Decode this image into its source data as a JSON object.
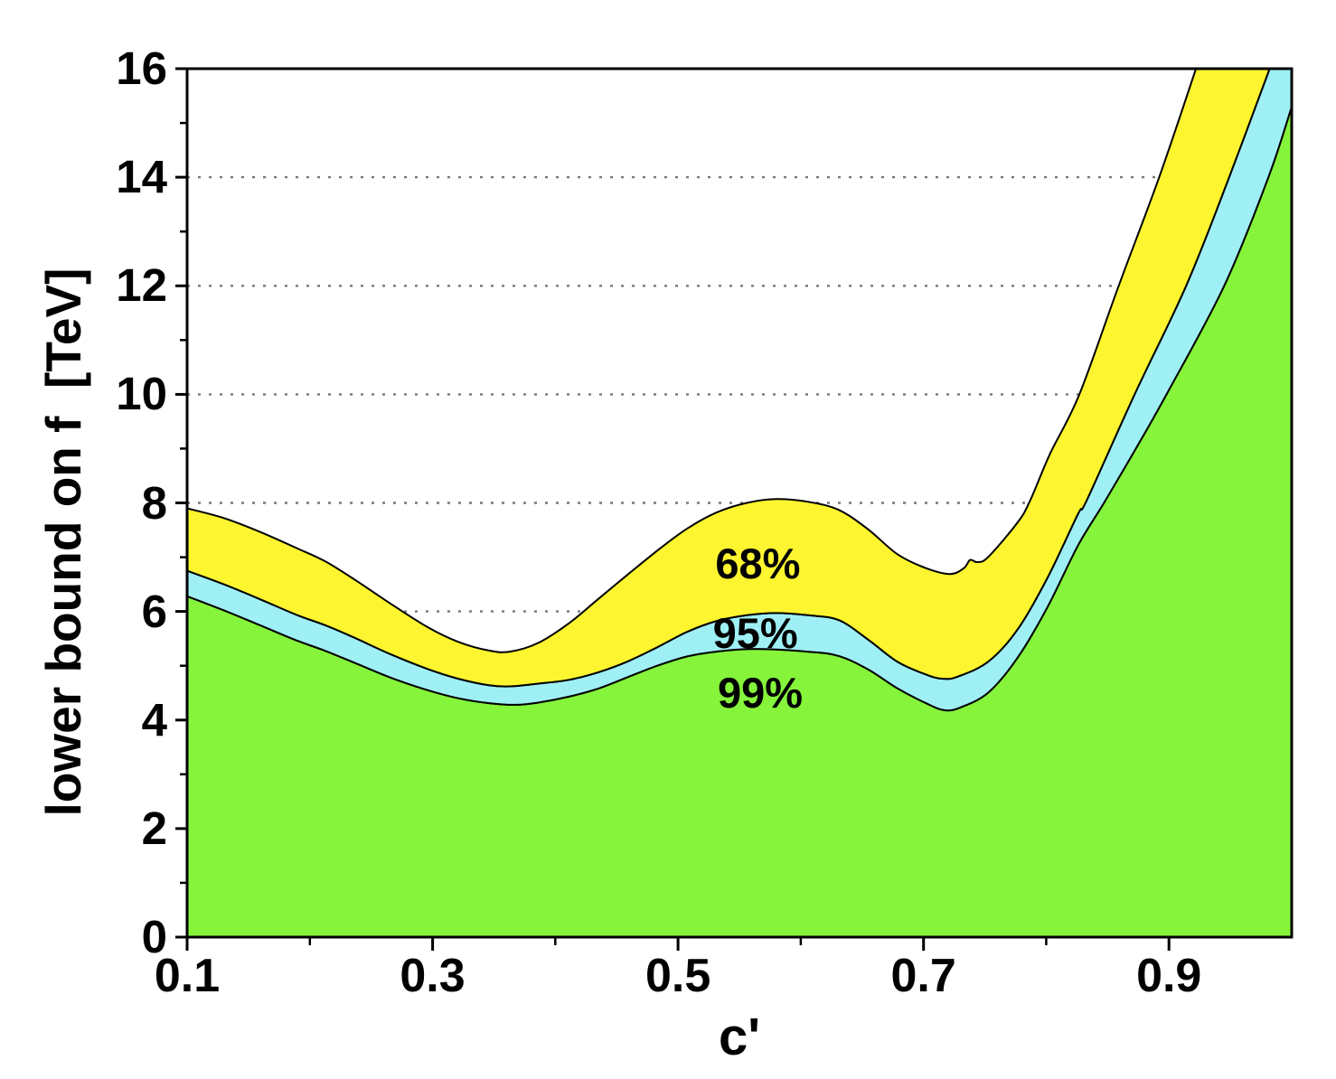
{
  "chart_data": {
    "type": "area",
    "title": "",
    "xlabel": "c'",
    "ylabel": "lower bound on f  [TeV]",
    "xlim": [
      0.1,
      1.0
    ],
    "ylim": [
      0,
      16
    ],
    "grid": "dotted horizontal gridlines at major y ticks",
    "legend_position": "labels inside bands",
    "x_major_ticks": [
      0.1,
      0.3,
      0.5,
      0.7,
      0.9
    ],
    "x_major_tick_labels": [
      "0.1",
      "0.3",
      "0.5",
      "0.7",
      "0.9"
    ],
    "x_minor_ticks": [
      0.2,
      0.4,
      0.6,
      0.8
    ],
    "y_major_ticks": [
      0,
      2,
      4,
      6,
      8,
      10,
      12,
      14,
      16
    ],
    "y_major_tick_labels": [
      "0",
      "2",
      "4",
      "6",
      "8",
      "10",
      "12",
      "14",
      "16"
    ],
    "y_minor_ticks": [
      1,
      3,
      5,
      7,
      9,
      11,
      13,
      15
    ],
    "gridline_y_values": [
      2,
      4,
      6,
      8,
      10,
      12,
      14
    ],
    "colors": {
      "band_68": "#FCF52F",
      "band_95": "#9FF0F5",
      "band_99": "#85F43B",
      "outline": "#000000",
      "grid": "#777777",
      "frame": "#000000",
      "background": "#FFFFFF"
    },
    "series": [
      {
        "name": "68% CL upper boundary",
        "band_fill": "#FCF52F",
        "points": [
          [
            0.1,
            7.9
          ],
          [
            0.13,
            7.72
          ],
          [
            0.16,
            7.46
          ],
          [
            0.19,
            7.16
          ],
          [
            0.212,
            6.93
          ],
          [
            0.237,
            6.58
          ],
          [
            0.266,
            6.14
          ],
          [
            0.296,
            5.71
          ],
          [
            0.321,
            5.44
          ],
          [
            0.346,
            5.28
          ],
          [
            0.363,
            5.26
          ],
          [
            0.386,
            5.42
          ],
          [
            0.411,
            5.78
          ],
          [
            0.435,
            6.23
          ],
          [
            0.459,
            6.68
          ],
          [
            0.483,
            7.12
          ],
          [
            0.507,
            7.52
          ],
          [
            0.531,
            7.82
          ],
          [
            0.556,
            8.0
          ],
          [
            0.58,
            8.07
          ],
          [
            0.606,
            8.02
          ],
          [
            0.631,
            7.87
          ],
          [
            0.655,
            7.51
          ],
          [
            0.679,
            7.05
          ],
          [
            0.703,
            6.79
          ],
          [
            0.722,
            6.69
          ],
          [
            0.733,
            6.8
          ],
          [
            0.738,
            6.95
          ],
          [
            0.744,
            6.91
          ],
          [
            0.753,
            7.01
          ],
          [
            0.777,
            7.65
          ],
          [
            0.787,
            8.05
          ],
          [
            0.803,
            8.9
          ],
          [
            0.827,
            10.0
          ],
          [
            0.859,
            12.0
          ],
          [
            0.892,
            14.0
          ],
          [
            0.922,
            16.0
          ],
          [
            0.96,
            18.6
          ],
          [
            1.0,
            21.3
          ]
        ]
      },
      {
        "name": "95% CL upper boundary",
        "band_fill": "#9FF0F5",
        "points": [
          [
            0.1,
            6.75
          ],
          [
            0.13,
            6.5
          ],
          [
            0.16,
            6.22
          ],
          [
            0.19,
            5.93
          ],
          [
            0.212,
            5.75
          ],
          [
            0.237,
            5.51
          ],
          [
            0.266,
            5.21
          ],
          [
            0.296,
            4.94
          ],
          [
            0.321,
            4.76
          ],
          [
            0.346,
            4.64
          ],
          [
            0.363,
            4.62
          ],
          [
            0.386,
            4.67
          ],
          [
            0.411,
            4.74
          ],
          [
            0.435,
            4.88
          ],
          [
            0.459,
            5.08
          ],
          [
            0.483,
            5.34
          ],
          [
            0.507,
            5.62
          ],
          [
            0.531,
            5.82
          ],
          [
            0.556,
            5.93
          ],
          [
            0.58,
            5.97
          ],
          [
            0.606,
            5.93
          ],
          [
            0.631,
            5.84
          ],
          [
            0.655,
            5.48
          ],
          [
            0.679,
            5.07
          ],
          [
            0.703,
            4.83
          ],
          [
            0.716,
            4.76
          ],
          [
            0.728,
            4.8
          ],
          [
            0.753,
            5.08
          ],
          [
            0.777,
            5.68
          ],
          [
            0.801,
            6.62
          ],
          [
            0.826,
            7.8
          ],
          [
            0.833,
            8.05
          ],
          [
            0.872,
            10.0
          ],
          [
            0.914,
            12.0
          ],
          [
            0.949,
            14.0
          ],
          [
            0.982,
            16.0
          ],
          [
            1.0,
            17.1
          ]
        ]
      },
      {
        "name": "99% CL upper boundary",
        "band_fill": "#85F43B",
        "points": [
          [
            0.1,
            6.28
          ],
          [
            0.13,
            6.02
          ],
          [
            0.16,
            5.74
          ],
          [
            0.19,
            5.46
          ],
          [
            0.212,
            5.28
          ],
          [
            0.237,
            5.05
          ],
          [
            0.266,
            4.78
          ],
          [
            0.296,
            4.55
          ],
          [
            0.321,
            4.4
          ],
          [
            0.346,
            4.31
          ],
          [
            0.368,
            4.28
          ],
          [
            0.386,
            4.32
          ],
          [
            0.411,
            4.43
          ],
          [
            0.435,
            4.58
          ],
          [
            0.459,
            4.79
          ],
          [
            0.483,
            5.0
          ],
          [
            0.507,
            5.17
          ],
          [
            0.531,
            5.26
          ],
          [
            0.562,
            5.31
          ],
          [
            0.606,
            5.26
          ],
          [
            0.631,
            5.18
          ],
          [
            0.655,
            4.93
          ],
          [
            0.679,
            4.58
          ],
          [
            0.703,
            4.3
          ],
          [
            0.717,
            4.18
          ],
          [
            0.73,
            4.23
          ],
          [
            0.753,
            4.51
          ],
          [
            0.777,
            5.16
          ],
          [
            0.801,
            6.08
          ],
          [
            0.826,
            7.22
          ],
          [
            0.847,
            8.0
          ],
          [
            0.873,
            9.0
          ],
          [
            0.898,
            10.0
          ],
          [
            0.945,
            12.0
          ],
          [
            0.981,
            14.0
          ],
          [
            1.0,
            15.3
          ]
        ]
      }
    ],
    "band_labels": [
      {
        "text": "68%",
        "x": 0.565,
        "y": 6.87
      },
      {
        "text": "95%",
        "x": 0.563,
        "y": 5.6
      },
      {
        "text": "99%",
        "x": 0.567,
        "y": 4.5
      }
    ]
  }
}
